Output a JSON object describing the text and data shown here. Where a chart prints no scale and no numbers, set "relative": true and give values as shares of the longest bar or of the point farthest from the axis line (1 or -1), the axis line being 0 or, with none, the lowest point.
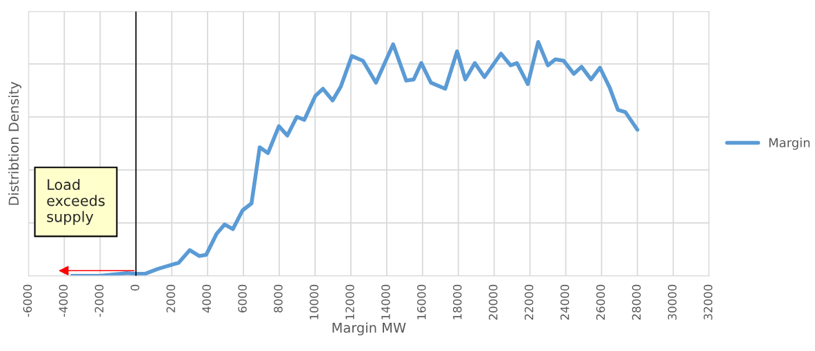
{
  "chart_data": {
    "type": "line",
    "relative": true,
    "xlabel": "Margin MW",
    "ylabel": "Distribtion Density",
    "xlim": [
      -6000,
      32000
    ],
    "xticks": [
      -6000,
      -4000,
      -2000,
      0,
      2000,
      4000,
      6000,
      8000,
      10000,
      12000,
      14000,
      16000,
      18000,
      20000,
      22000,
      24000,
      26000,
      28000,
      30000,
      32000
    ],
    "grid": true,
    "legend": "right",
    "ref_lines": [
      {
        "axis": "x",
        "value": 0,
        "color": "#000000"
      }
    ],
    "annotations": [
      "Load\nexceeds\nsupply"
    ],
    "series": [
      {
        "name": "Margin",
        "color": "#5b9bd5",
        "x": [
          -3570,
          -2000,
          -500,
          0,
          500,
          1230,
          2380,
          3000,
          3530,
          3920,
          4500,
          4950,
          5410,
          5950,
          6450,
          6910,
          7370,
          7980,
          8450,
          8980,
          9400,
          10020,
          10440,
          10980,
          11440,
          12050,
          12670,
          13400,
          14360,
          15090,
          15510,
          15930,
          16470,
          17270,
          17930,
          18390,
          18920,
          19460,
          20380,
          20920,
          21270,
          21880,
          22460,
          23000,
          23420,
          23880,
          24450,
          24880,
          25410,
          25910,
          26450,
          26910,
          27330,
          28000
        ],
        "values": [
          0,
          0,
          0.012,
          0.009,
          0.009,
          0.03,
          0.056,
          0.11,
          0.085,
          0.09,
          0.18,
          0.22,
          0.2,
          0.28,
          0.31,
          0.55,
          0.525,
          0.64,
          0.6,
          0.68,
          0.667,
          0.77,
          0.8,
          0.75,
          0.81,
          0.94,
          0.92,
          0.826,
          0.99,
          0.835,
          0.84,
          0.91,
          0.826,
          0.8,
          0.96,
          0.84,
          0.91,
          0.85,
          0.95,
          0.9,
          0.91,
          0.82,
          1,
          0.9,
          0.926,
          0.92,
          0.864,
          0.894,
          0.84,
          0.89,
          0.805,
          0.71,
          0.7,
          0.625
        ]
      }
    ]
  }
}
